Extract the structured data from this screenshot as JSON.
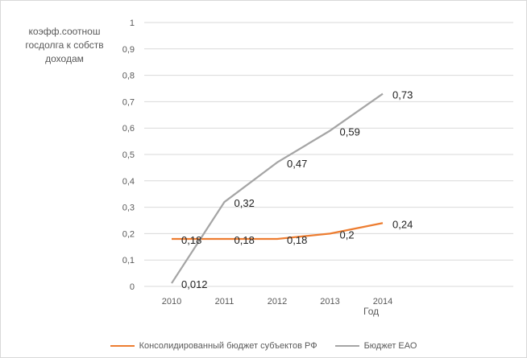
{
  "chart_data": {
    "type": "line",
    "title": "",
    "ylabel": "коэфф.соотнош госдолга к собств доходам",
    "xlabel": "Год",
    "categories": [
      "2010",
      "2011",
      "2012",
      "2013",
      "2014"
    ],
    "ylim": [
      0,
      1
    ],
    "y_ticks": [
      "0",
      "0,1",
      "0,2",
      "0,3",
      "0,4",
      "0,5",
      "0,6",
      "0,7",
      "0,8",
      "0,9",
      "1"
    ],
    "grid": true,
    "legend_position": "bottom",
    "series": [
      {
        "name": "Консолидированный бюджет субъектов РФ",
        "color": "#ED7D31",
        "values": [
          0.18,
          0.18,
          0.18,
          0.2,
          0.24
        ],
        "labels": [
          "0,18",
          "0,18",
          "0,18",
          "0,2",
          "0,24"
        ]
      },
      {
        "name": "Бюджет ЕАО",
        "color": "#A5A5A5",
        "values": [
          0.012,
          0.32,
          0.47,
          0.59,
          0.73
        ],
        "labels": [
          "0,012",
          "0,32",
          "0,47",
          "0,59",
          "0,73"
        ]
      }
    ]
  }
}
